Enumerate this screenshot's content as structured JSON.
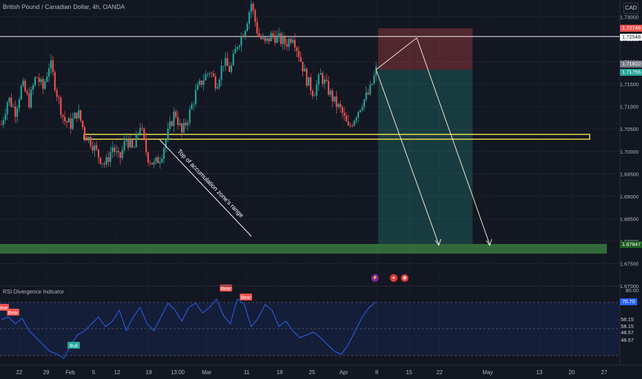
{
  "header": {
    "title": "British Pound / Canadian Dollar, 4h, OANDA",
    "currency": "CAD"
  },
  "rsi": {
    "title": "RSI Divergence Indicator"
  },
  "price_tags": {
    "t1": "1.72749",
    "t2": "1.72548",
    "t3": "1.71810",
    "t4": "1.71756",
    "t5": "1.67847"
  },
  "rsi_tags": {
    "current": "70.70"
  },
  "event_icons": [
    "lightning-icon",
    "earnings-icon",
    "dividend-icon"
  ],
  "colors": {
    "up": "#26a69a",
    "down": "#ef5350",
    "rsi_line": "#2962ff",
    "zone": "#f5e04a",
    "background": "#131722"
  },
  "chart_data": [
    {
      "type": "candlestick",
      "symbol": "GBPCAD",
      "timeframe": "4h",
      "ylim": [
        1.67,
        1.733
      ],
      "y_ticks": [
        "1.73000",
        "1.72500",
        "1.72000",
        "1.71500",
        "1.71000",
        "1.70500",
        "1.70000",
        "1.69500",
        "1.69000",
        "1.68500",
        "1.68000",
        "1.67500",
        "1.67000"
      ],
      "y_tick_values": [
        1.73,
        1.725,
        1.72,
        1.715,
        1.71,
        1.705,
        1.7,
        1.695,
        1.69,
        1.685,
        1.68,
        1.675,
        1.67
      ],
      "x_ticks": [
        "22",
        "29",
        "Feb",
        "5",
        "12",
        "19",
        "13:00",
        "Mar",
        "11",
        "18",
        "25",
        "Apr",
        "8",
        "15",
        "22",
        "May",
        "13",
        "20",
        "27"
      ],
      "close_path": [
        1.706,
        1.712,
        1.709,
        1.715,
        1.711,
        1.717,
        1.714,
        1.72,
        1.713,
        1.707,
        1.706,
        1.709,
        1.704,
        1.702,
        1.699,
        1.697,
        1.701,
        1.698,
        1.703,
        1.7,
        1.706,
        1.699,
        1.697,
        1.699,
        1.704,
        1.709,
        1.704,
        1.708,
        1.713,
        1.716,
        1.718,
        1.715,
        1.72,
        1.718,
        1.724,
        1.727,
        1.733,
        1.726,
        1.724,
        1.726,
        1.725,
        1.724,
        1.726,
        1.721,
        1.716,
        1.713,
        1.717,
        1.714,
        1.711,
        1.709,
        1.705,
        1.708,
        1.711,
        1.713,
        1.718
      ],
      "annotations": [
        {
          "text": "Top of accumulation zone's range"
        }
      ]
    },
    {
      "type": "line",
      "name": "RSI Divergence Indicator",
      "ylim": [
        30,
        85
      ],
      "y_ticks": [
        "80.00"
      ],
      "markers": [
        "Bear",
        "Bear",
        "Bull",
        "Bear",
        "Bear"
      ],
      "levels": [
        "58.15",
        "58.15",
        "48.57",
        "48.57"
      ],
      "values": [
        63,
        65,
        60,
        64,
        55,
        50,
        45,
        40,
        38,
        35,
        45,
        52,
        55,
        60,
        65,
        58,
        62,
        70,
        55,
        65,
        72,
        60,
        55,
        65,
        75,
        70,
        62,
        72,
        75,
        68,
        72,
        78,
        66,
        60,
        78,
        74,
        58,
        64,
        74,
        70,
        58,
        62,
        55,
        50,
        52,
        54,
        50,
        45,
        40,
        38,
        45,
        55,
        65,
        72,
        76
      ]
    }
  ]
}
